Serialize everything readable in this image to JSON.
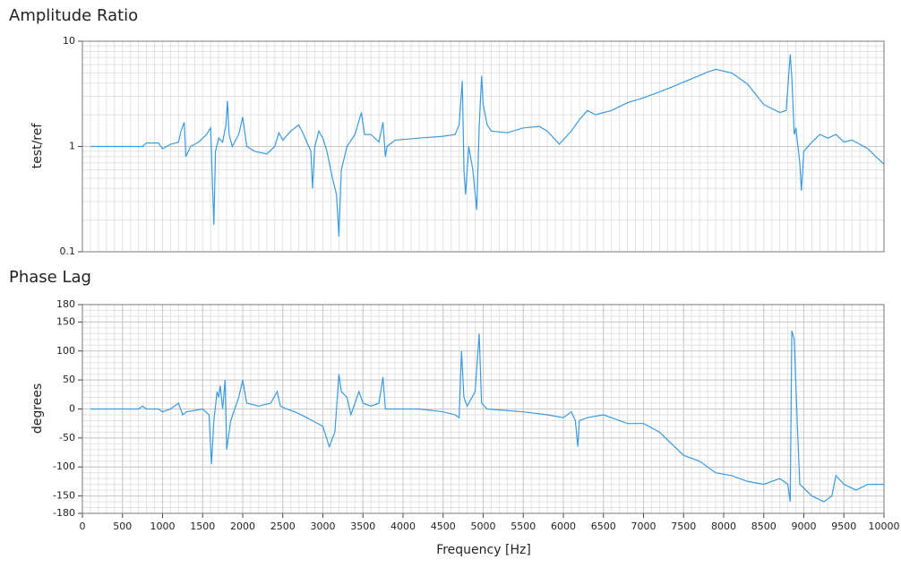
{
  "chart_data": [
    {
      "type": "line",
      "title": "Amplitude Ratio",
      "ylabel": "test/ref",
      "log_y": true,
      "grid": true,
      "xlim": [
        0,
        10000
      ],
      "ylim": [
        0.1,
        10
      ],
      "yticks": [
        0.1,
        1,
        10
      ],
      "x": [
        100,
        500,
        750,
        800,
        950,
        1000,
        1100,
        1200,
        1230,
        1270,
        1290,
        1350,
        1450,
        1550,
        1600,
        1620,
        1640,
        1660,
        1700,
        1750,
        1790,
        1810,
        1830,
        1870,
        1950,
        2000,
        2050,
        2150,
        2300,
        2400,
        2450,
        2500,
        2600,
        2700,
        2750,
        2800,
        2850,
        2870,
        2900,
        2950,
        3000,
        3050,
        3120,
        3170,
        3200,
        3230,
        3300,
        3400,
        3480,
        3520,
        3600,
        3700,
        3750,
        3780,
        3800,
        3900,
        4200,
        4500,
        4650,
        4700,
        4740,
        4760,
        4780,
        4820,
        4870,
        4920,
        4950,
        4980,
        5000,
        5050,
        5100,
        5300,
        5500,
        5700,
        5800,
        5950,
        6100,
        6200,
        6300,
        6400,
        6600,
        6800,
        7000,
        7200,
        7400,
        7600,
        7800,
        7900,
        8100,
        8300,
        8500,
        8700,
        8780,
        8830,
        8850,
        8880,
        8900,
        8950,
        8970,
        9000,
        9100,
        9200,
        9300,
        9400,
        9500,
        9600,
        9700,
        9800,
        9900,
        10000
      ],
      "series": [
        {
          "name": "amplitude",
          "color": "#3a9ae0",
          "values": [
            1.0,
            1.0,
            1.0,
            1.08,
            1.08,
            0.95,
            1.05,
            1.1,
            1.4,
            1.7,
            0.8,
            1.0,
            1.1,
            1.3,
            1.5,
            0.5,
            0.18,
            0.9,
            1.2,
            1.1,
            1.6,
            2.7,
            1.3,
            1.0,
            1.3,
            1.9,
            1.0,
            0.9,
            0.85,
            1.0,
            1.35,
            1.15,
            1.4,
            1.6,
            1.35,
            1.1,
            0.9,
            0.4,
            1.0,
            1.4,
            1.2,
            0.9,
            0.5,
            0.35,
            0.14,
            0.6,
            1.0,
            1.3,
            2.1,
            1.3,
            1.3,
            1.1,
            1.7,
            0.8,
            1.0,
            1.15,
            1.2,
            1.25,
            1.3,
            1.6,
            4.2,
            0.6,
            0.35,
            1.0,
            0.6,
            0.25,
            1.5,
            4.7,
            2.5,
            1.6,
            1.4,
            1.35,
            1.5,
            1.55,
            1.4,
            1.05,
            1.4,
            1.8,
            2.2,
            2.0,
            2.2,
            2.6,
            2.9,
            3.3,
            3.8,
            4.4,
            5.1,
            5.4,
            5.0,
            3.9,
            2.5,
            2.1,
            2.2,
            7.5,
            4.5,
            1.3,
            1.5,
            0.7,
            0.38,
            0.9,
            1.1,
            1.3,
            1.2,
            1.3,
            1.1,
            1.15,
            1.05,
            0.95,
            0.8,
            0.68
          ]
        }
      ]
    },
    {
      "type": "line",
      "title": "Phase Lag",
      "ylabel": "degrees",
      "xlabel": "Frequency [Hz]",
      "grid": true,
      "xlim": [
        0,
        10000
      ],
      "ylim": [
        -180,
        180
      ],
      "xticks": [
        0,
        500,
        1000,
        1500,
        2000,
        2500,
        3000,
        3500,
        4000,
        4500,
        5000,
        5500,
        6000,
        6500,
        7000,
        7500,
        8000,
        8500,
        9000,
        9500,
        10000
      ],
      "yticks": [
        -180,
        -150,
        -100,
        -50,
        0,
        50,
        100,
        150,
        180
      ],
      "x": [
        100,
        700,
        750,
        800,
        950,
        1000,
        1100,
        1200,
        1250,
        1300,
        1500,
        1580,
        1610,
        1640,
        1680,
        1700,
        1720,
        1750,
        1780,
        1800,
        1850,
        1900,
        1950,
        2000,
        2050,
        2200,
        2350,
        2430,
        2470,
        2550,
        2650,
        2800,
        3000,
        3080,
        3150,
        3200,
        3230,
        3300,
        3350,
        3400,
        3450,
        3500,
        3600,
        3700,
        3750,
        3780,
        3900,
        4200,
        4500,
        4650,
        4700,
        4730,
        4760,
        4800,
        4900,
        4950,
        4980,
        5050,
        5500,
        5800,
        6000,
        6100,
        6150,
        6180,
        6200,
        6300,
        6500,
        6800,
        7000,
        7200,
        7500,
        7700,
        7900,
        8100,
        8300,
        8500,
        8700,
        8800,
        8830,
        8850,
        8880,
        8920,
        8950,
        9100,
        9250,
        9350,
        9400,
        9500,
        9650,
        9800,
        10000
      ],
      "series": [
        {
          "name": "phase",
          "color": "#3a9ae0",
          "values": [
            0,
            0,
            5,
            0,
            0,
            -5,
            0,
            10,
            -10,
            -5,
            0,
            -10,
            -95,
            -20,
            30,
            20,
            40,
            0,
            50,
            -70,
            -20,
            0,
            20,
            50,
            10,
            5,
            10,
            30,
            5,
            0,
            -5,
            -15,
            -30,
            -65,
            -40,
            60,
            30,
            20,
            -10,
            10,
            30,
            10,
            5,
            10,
            55,
            0,
            0,
            0,
            -5,
            -10,
            -15,
            100,
            20,
            5,
            30,
            130,
            10,
            0,
            -5,
            -10,
            -15,
            -5,
            -20,
            -65,
            -20,
            -15,
            -10,
            -25,
            -25,
            -40,
            -80,
            -90,
            -110,
            -115,
            -125,
            -130,
            -120,
            -130,
            -160,
            135,
            120,
            -30,
            -130,
            -150,
            -160,
            -150,
            -115,
            -130,
            -140,
            -130,
            -130
          ]
        }
      ]
    }
  ]
}
